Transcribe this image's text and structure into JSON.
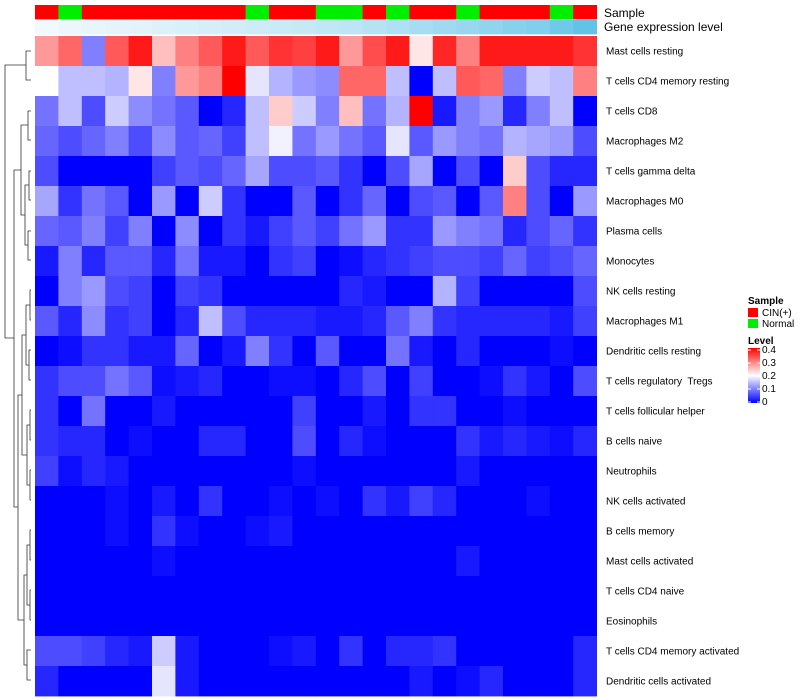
{
  "chart_data": {
    "type": "heatmap",
    "title": "",
    "annotation_tracks": [
      {
        "label": "Sample",
        "type": "categorical",
        "values": [
          "CIN(+)",
          "Normal",
          "CIN(+)",
          "CIN(+)",
          "CIN(+)",
          "CIN(+)",
          "CIN(+)",
          "CIN(+)",
          "CIN(+)",
          "Normal",
          "CIN(+)",
          "CIN(+)",
          "Normal",
          "Normal",
          "CIN(+)",
          "Normal",
          "CIN(+)",
          "CIN(+)",
          "Normal",
          "CIN(+)",
          "CIN(+)",
          "CIN(+)",
          "Normal",
          "CIN(+)"
        ]
      },
      {
        "label": "Gene expression level",
        "type": "continuous",
        "values": [
          0.02,
          0.05,
          0.08,
          0.1,
          0.12,
          0.15,
          0.18,
          0.2,
          0.22,
          0.25,
          0.28,
          0.3,
          0.33,
          0.36,
          0.4,
          0.45,
          0.5,
          0.55,
          0.6,
          0.65,
          0.7,
          0.75,
          0.85,
          0.95
        ]
      }
    ],
    "rows": [
      "Mast cells resting",
      "T cells CD4 memory resting",
      "T cells CD8",
      "Macrophages M2",
      "T cells gamma delta",
      "Macrophages M0",
      "Plasma cells",
      "Monocytes",
      "NK cells resting",
      "Macrophages M1",
      "Dendritic cells resting",
      "T cells regulatory  Tregs",
      "T cells follicular helper",
      "B cells naive",
      "Neutrophils",
      "NK cells activated",
      "B cells memory",
      "Mast cells activated",
      "T cells CD4 naive",
      "Eosinophils",
      "T cells CD4 memory activated",
      "Dendritic cells activated"
    ],
    "n_columns": 24,
    "values": [
      [
        0.28,
        0.32,
        0.1,
        0.33,
        0.38,
        0.25,
        0.3,
        0.33,
        0.38,
        0.33,
        0.36,
        0.35,
        0.38,
        0.28,
        0.34,
        0.38,
        0.22,
        0.37,
        0.3,
        0.38,
        0.38,
        0.38,
        0.38,
        0.36
      ],
      [
        0.2,
        0.15,
        0.15,
        0.14,
        0.22,
        0.1,
        0.28,
        0.3,
        0.4,
        0.18,
        0.14,
        0.12,
        0.11,
        0.32,
        0.32,
        0.15,
        0.0,
        0.15,
        0.33,
        0.32,
        0.1,
        0.16,
        0.15,
        0.3
      ],
      [
        0.09,
        0.15,
        0.06,
        0.16,
        0.11,
        0.09,
        0.07,
        0.0,
        0.03,
        0.15,
        0.24,
        0.16,
        0.1,
        0.25,
        0.09,
        0.14,
        0.4,
        0.02,
        0.1,
        0.12,
        0.03,
        0.1,
        0.15,
        0.0
      ],
      [
        0.08,
        0.06,
        0.08,
        0.1,
        0.06,
        0.11,
        0.07,
        0.08,
        0.05,
        0.15,
        0.19,
        0.09,
        0.12,
        0.09,
        0.07,
        0.18,
        0.07,
        0.12,
        0.1,
        0.09,
        0.14,
        0.13,
        0.12,
        0.06
      ],
      [
        0.06,
        0.0,
        0.0,
        0.0,
        0.0,
        0.05,
        0.07,
        0.06,
        0.08,
        0.13,
        0.06,
        0.06,
        0.07,
        0.04,
        0.0,
        0.06,
        0.13,
        0.0,
        0.06,
        0.0,
        0.24,
        0.06,
        0.03,
        0.03
      ],
      [
        0.13,
        0.04,
        0.09,
        0.07,
        0.0,
        0.12,
        0.0,
        0.16,
        0.04,
        0.0,
        0.0,
        0.07,
        0.0,
        0.04,
        0.08,
        0.0,
        0.06,
        0.07,
        0.0,
        0.07,
        0.3,
        0.06,
        0.0,
        0.12
      ],
      [
        0.08,
        0.07,
        0.1,
        0.05,
        0.1,
        0.0,
        0.11,
        0.0,
        0.04,
        0.02,
        0.05,
        0.07,
        0.05,
        0.09,
        0.12,
        0.04,
        0.04,
        0.12,
        0.1,
        0.09,
        0.03,
        0.06,
        0.08,
        0.04
      ],
      [
        0.02,
        0.1,
        0.03,
        0.07,
        0.07,
        0.03,
        0.09,
        0.02,
        0.02,
        0.0,
        0.04,
        0.05,
        0.0,
        0.01,
        0.03,
        0.04,
        0.05,
        0.06,
        0.06,
        0.05,
        0.08,
        0.05,
        0.06,
        0.08
      ],
      [
        0.0,
        0.1,
        0.12,
        0.06,
        0.05,
        0.0,
        0.05,
        0.04,
        0.0,
        0.0,
        0.0,
        0.0,
        0.0,
        0.03,
        0.02,
        0.0,
        0.0,
        0.14,
        0.05,
        0.0,
        0.0,
        0.0,
        0.0,
        0.06
      ],
      [
        0.07,
        0.03,
        0.11,
        0.04,
        0.05,
        0.0,
        0.03,
        0.15,
        0.06,
        0.03,
        0.03,
        0.03,
        0.02,
        0.02,
        0.03,
        0.07,
        0.1,
        0.04,
        0.03,
        0.03,
        0.03,
        0.03,
        0.02,
        0.05
      ],
      [
        0.0,
        0.01,
        0.04,
        0.04,
        0.02,
        0.02,
        0.08,
        0.0,
        0.02,
        0.1,
        0.04,
        0.0,
        0.07,
        0.0,
        0.0,
        0.09,
        0.02,
        0.0,
        0.03,
        0.0,
        0.0,
        0.0,
        0.01,
        0.0
      ],
      [
        0.04,
        0.06,
        0.06,
        0.09,
        0.07,
        0.01,
        0.02,
        0.03,
        0.0,
        0.0,
        0.01,
        0.01,
        0.0,
        0.03,
        0.06,
        0.0,
        0.05,
        0.0,
        0.0,
        0.01,
        0.04,
        0.02,
        0.0,
        0.06
      ],
      [
        0.04,
        0.0,
        0.09,
        0.0,
        0.0,
        0.02,
        0.0,
        0.0,
        0.0,
        0.0,
        0.0,
        0.05,
        0.0,
        0.0,
        0.02,
        0.0,
        0.04,
        0.04,
        0.0,
        0.0,
        0.01,
        0.0,
        0.0,
        0.0
      ],
      [
        0.04,
        0.03,
        0.03,
        0.0,
        0.01,
        0.0,
        0.0,
        0.03,
        0.03,
        0.0,
        0.0,
        0.06,
        0.0,
        0.03,
        0.01,
        0.0,
        0.0,
        0.0,
        0.04,
        0.02,
        0.03,
        0.02,
        0.01,
        0.03
      ],
      [
        0.05,
        0.01,
        0.03,
        0.02,
        0.0,
        0.0,
        0.0,
        0.0,
        0.0,
        0.0,
        0.0,
        0.01,
        0.0,
        0.0,
        0.0,
        0.0,
        0.0,
        0.0,
        0.02,
        0.0,
        0.0,
        0.0,
        0.0,
        0.0
      ],
      [
        0.0,
        0.0,
        0.0,
        0.01,
        0.0,
        0.02,
        0.0,
        0.04,
        0.0,
        0.0,
        0.01,
        0.0,
        0.01,
        0.0,
        0.04,
        0.02,
        0.05,
        0.03,
        0.0,
        0.0,
        0.0,
        0.01,
        0.0,
        0.0
      ],
      [
        0.0,
        0.0,
        0.0,
        0.01,
        0.0,
        0.04,
        0.01,
        0.0,
        0.0,
        0.01,
        0.02,
        0.0,
        0.0,
        0.0,
        0.0,
        0.0,
        0.0,
        0.0,
        0.0,
        0.0,
        0.0,
        0.0,
        0.0,
        0.0
      ],
      [
        0.0,
        0.0,
        0.0,
        0.0,
        0.0,
        0.01,
        0.0,
        0.0,
        0.0,
        0.0,
        0.0,
        0.0,
        0.0,
        0.0,
        0.0,
        0.0,
        0.0,
        0.0,
        0.02,
        0.0,
        0.0,
        0.0,
        0.0,
        0.0
      ],
      [
        0.0,
        0.0,
        0.0,
        0.0,
        0.0,
        0.0,
        0.0,
        0.0,
        0.0,
        0.0,
        0.0,
        0.0,
        0.0,
        0.0,
        0.0,
        0.0,
        0.0,
        0.0,
        0.0,
        0.0,
        0.0,
        0.0,
        0.0,
        0.0
      ],
      [
        0.0,
        0.0,
        0.0,
        0.0,
        0.0,
        0.0,
        0.0,
        0.0,
        0.0,
        0.0,
        0.0,
        0.0,
        0.0,
        0.0,
        0.0,
        0.0,
        0.0,
        0.0,
        0.0,
        0.0,
        0.0,
        0.0,
        0.0,
        0.0
      ],
      [
        0.06,
        0.06,
        0.05,
        0.03,
        0.02,
        0.16,
        0.02,
        0.0,
        0.0,
        0.0,
        0.01,
        0.02,
        0.0,
        0.04,
        0.0,
        0.03,
        0.03,
        0.04,
        0.0,
        0.0,
        0.0,
        0.0,
        0.0,
        0.03
      ],
      [
        0.03,
        0.0,
        0.0,
        0.0,
        0.0,
        0.18,
        0.02,
        0.0,
        0.0,
        0.0,
        0.0,
        0.0,
        0.0,
        0.0,
        0.0,
        0.0,
        0.02,
        0.0,
        0.01,
        0.03,
        0.0,
        0.0,
        0.0,
        0.03
      ]
    ],
    "color_scale": {
      "min": 0,
      "mid": 0.2,
      "max": 0.4,
      "low_color": "#0000ff",
      "mid_color": "#ffffff",
      "high_color": "#ff0000"
    },
    "legends": [
      {
        "title": "Sample",
        "entries": [
          {
            "label": "CIN(+)",
            "color": "#ff0000"
          },
          {
            "label": "Normal",
            "color": "#00ee00"
          }
        ]
      },
      {
        "title": "Level",
        "ticks": [
          "0.4",
          "0.3",
          "0.2",
          "0.1",
          "0"
        ]
      }
    ],
    "annotation_colors": {
      "sample": {
        "CIN(+)": "#ff0000",
        "Normal": "#00ee00"
      },
      "expression_low": "#f4fafd",
      "expression_high": "#5ac0e6"
    },
    "row_dendrogram": true,
    "legend_position": "right"
  }
}
